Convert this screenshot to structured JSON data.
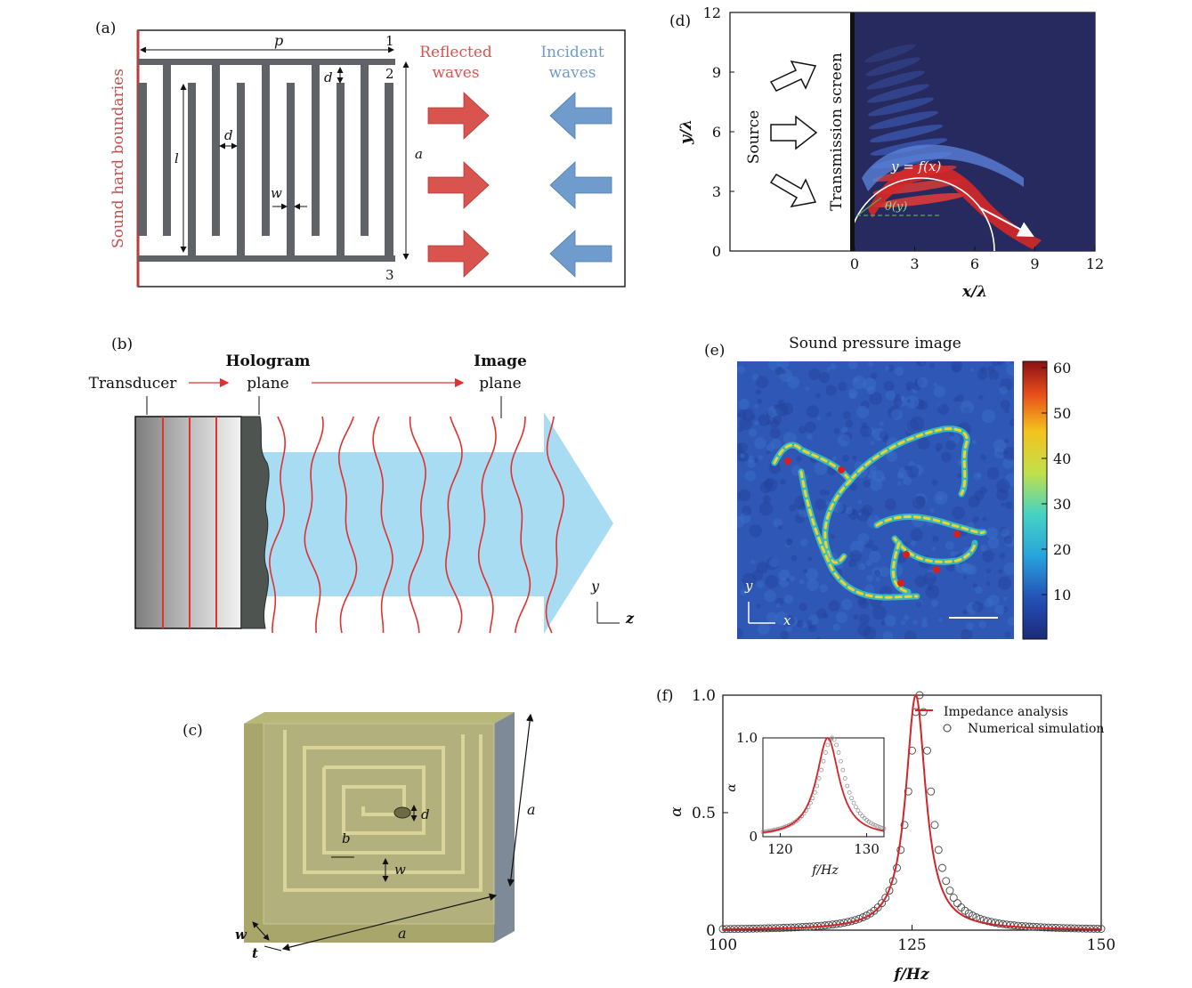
{
  "colors": {
    "red": "#d9534f",
    "blue": "#6f9ccd",
    "gray": "#5f6368",
    "wave": "#e03030",
    "beam": "#a8dcf3",
    "spiral": "#9b9b3f"
  },
  "panel_a": {
    "label": "(a)",
    "side_label": "Sound hard boundaries",
    "p": "p",
    "d_top": "d",
    "d_mid": "d",
    "w": "w",
    "l": "l",
    "a": "a",
    "n1": "1",
    "n2": "2",
    "n3": "3",
    "reflected": [
      "Reflected",
      "waves"
    ],
    "incident": [
      "Incident",
      "waves"
    ]
  },
  "panel_b": {
    "label": "(b)",
    "transducer": "Transducer",
    "hologram": [
      "Hologram",
      "plane"
    ],
    "image": [
      "Image",
      "plane"
    ],
    "axis_y": "y",
    "axis_z": "z"
  },
  "panel_c": {
    "label": "(c)",
    "a_right": "a",
    "a_bottom": "a",
    "d": "d",
    "b": "b",
    "w_inner": "w",
    "w_outer": "w",
    "t": "t"
  },
  "panel_d": {
    "label": "(d)",
    "source": "Source",
    "screen": "Transmission screen",
    "curve": "y = f(x)",
    "theta": "θ(y)",
    "xlabel": "x/λ",
    "ylabel": "y/λ",
    "xticks": [
      "0",
      "3",
      "6",
      "9",
      "12"
    ],
    "yticks": [
      "0",
      "3",
      "6",
      "9",
      "12"
    ]
  },
  "panel_e": {
    "label": "(e)",
    "title": "Sound pressure image",
    "axis_y": "y",
    "axis_x": "x",
    "colorbar_ticks": [
      "60",
      "50",
      "40",
      "30",
      "20",
      "10"
    ]
  },
  "chart_data": [
    {
      "type": "line",
      "title": "(f)",
      "xlabel": "f/Hz",
      "ylabel": "α",
      "xlim": [
        100,
        150
      ],
      "ylim": [
        0,
        1.0
      ],
      "xticks": [
        "100",
        "125",
        "150"
      ],
      "yticks": [
        "0",
        "0.5",
        "1.0"
      ],
      "legend": [
        "Impedance analysis",
        "Numerical simulation"
      ],
      "legend_position": "top-right",
      "series": [
        {
          "name": "Impedance analysis",
          "style": "line",
          "f0": 125.5,
          "width": 1.6,
          "x": [
            100,
            110,
            115,
            118,
            120,
            122,
            123,
            124,
            125,
            125.5,
            126,
            127,
            128,
            129,
            130,
            132,
            135,
            140,
            150
          ],
          "values": [
            0.004,
            0.012,
            0.03,
            0.06,
            0.1,
            0.19,
            0.3,
            0.55,
            0.93,
            1.0,
            0.93,
            0.55,
            0.3,
            0.19,
            0.14,
            0.07,
            0.03,
            0.012,
            0.004
          ]
        },
        {
          "name": "Numerical simulation",
          "style": "circles",
          "f0": 126,
          "width": 1.8
        }
      ]
    },
    {
      "type": "line",
      "title": "inset",
      "xlabel": "f/Hz",
      "ylabel": "α",
      "xlim": [
        118,
        132
      ],
      "ylim": [
        0,
        1.0
      ],
      "xticks": [
        "120",
        "130"
      ],
      "yticks": [
        "0",
        "1.0"
      ]
    }
  ]
}
